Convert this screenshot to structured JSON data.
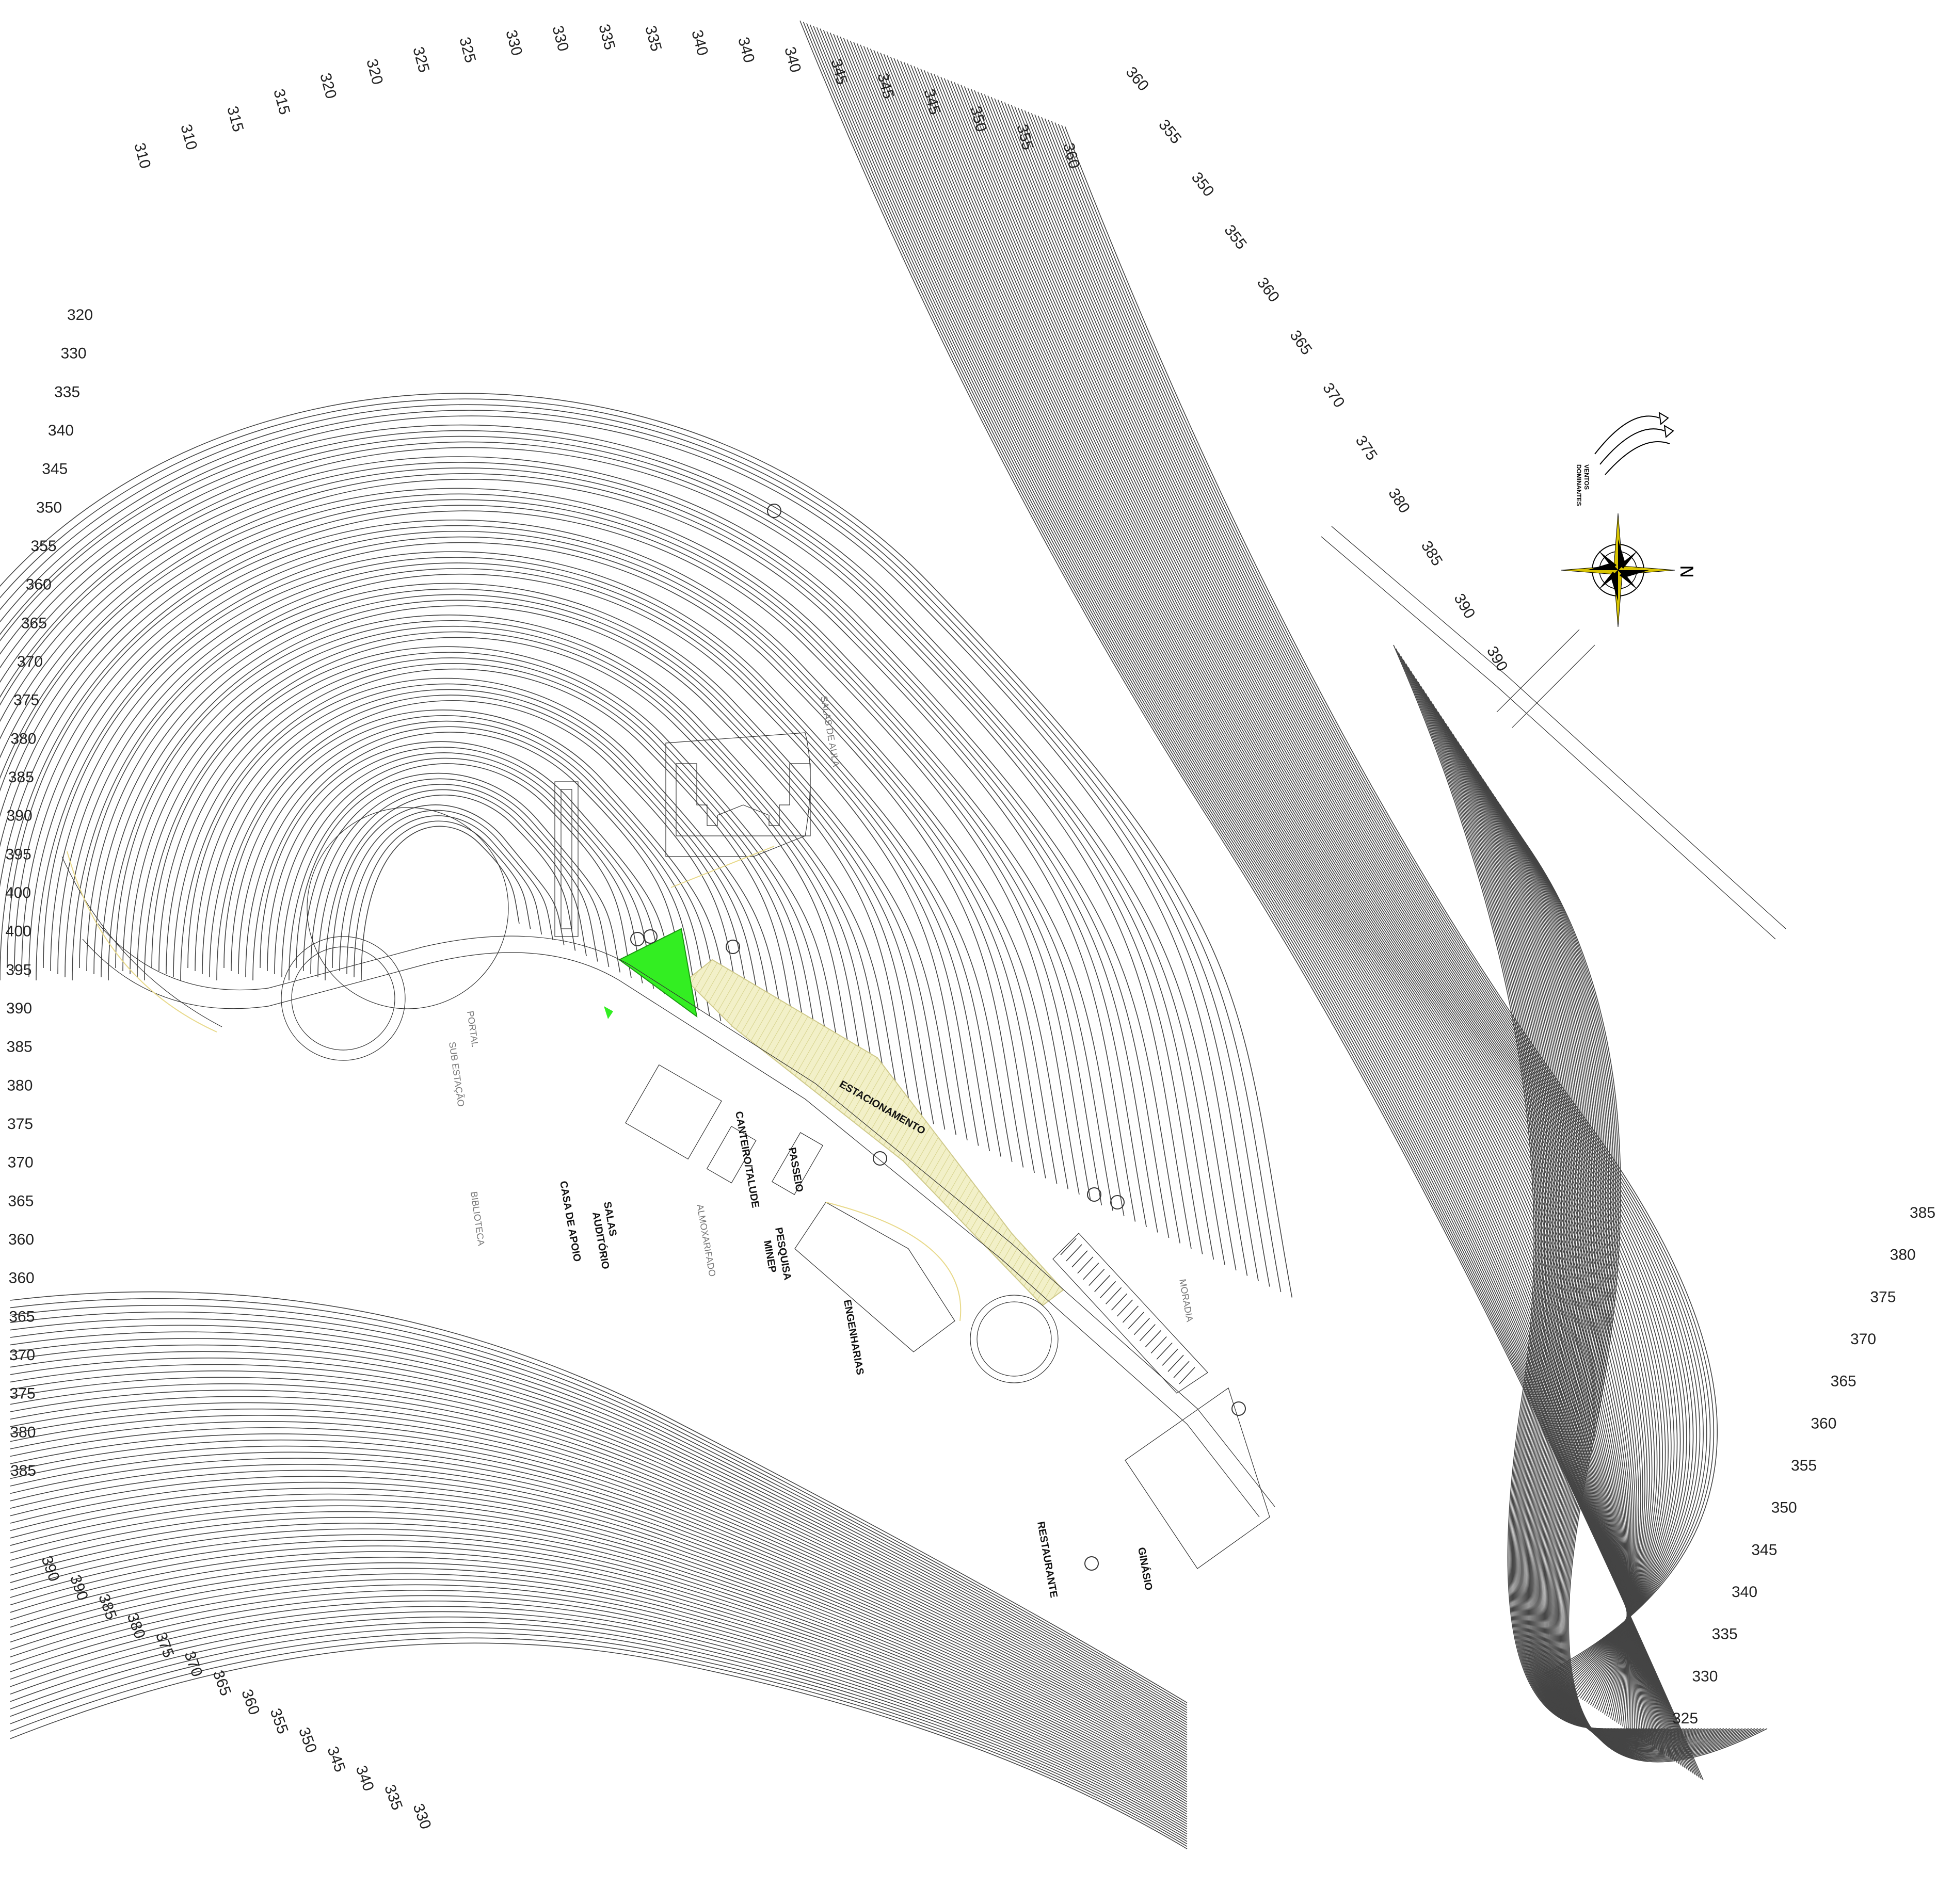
{
  "map": {
    "colors": {
      "contour": "#444444",
      "building": "#333333",
      "green_area": "#33ee22",
      "parking_hatch": "#e9e6a8",
      "circulation": "#e8d98a",
      "compass_accent": "#d8c400"
    },
    "north_label": "N",
    "wind_label_line1": "VENTOS",
    "wind_label_line2": "DOMINANTES",
    "buildings": [
      {
        "id": "salas-de-aula",
        "label": "SALAS DE AULA"
      },
      {
        "id": "portal",
        "label": "PORTAL"
      },
      {
        "id": "sub-estacao",
        "label": "SUB ESTAÇÃO"
      },
      {
        "id": "biblioteca",
        "label": "BIBLIOTECA"
      },
      {
        "id": "casa-de-apoio",
        "label": "CASA DE APOIO"
      },
      {
        "id": "salas-auditorio-1",
        "label": "SALAS"
      },
      {
        "id": "salas-auditorio-2",
        "label": "AUDITÓRIO"
      },
      {
        "id": "almoxarifado",
        "label": "ALMOXARIFADO"
      },
      {
        "id": "cantero-talude",
        "label": "CANTEIRO/TALUDE"
      },
      {
        "id": "passeio",
        "label": "PASSEIO"
      },
      {
        "id": "pesquisa-1",
        "label": "PESQUISA"
      },
      {
        "id": "pesquisa-2",
        "label": "MINEP"
      },
      {
        "id": "estacionamento",
        "label": "ESTACIONAMENTO"
      },
      {
        "id": "engenharias",
        "label": "ENGENHARIAS"
      },
      {
        "id": "moradia",
        "label": "MORADIA"
      },
      {
        "id": "restaurante",
        "label": "RESTAURANTE"
      },
      {
        "id": "ginasio",
        "label": "GINÁSIO"
      }
    ],
    "elevation_labels": {
      "top": [
        "310",
        "310",
        "315",
        "315",
        "320",
        "320",
        "325",
        "325",
        "330",
        "330",
        "335",
        "335",
        "340",
        "340",
        "340",
        "345",
        "345",
        "345",
        "350",
        "355",
        "360"
      ],
      "top_right": [
        "360",
        "355",
        "350",
        "355",
        "360",
        "365",
        "370",
        "375",
        "380",
        "385",
        "390",
        "390"
      ],
      "left": [
        "320",
        "330",
        "335",
        "340",
        "345",
        "350",
        "355",
        "360",
        "365",
        "370",
        "375",
        "380",
        "385",
        "390",
        "395",
        "400",
        "400",
        "395",
        "390",
        "385",
        "380",
        "375",
        "370",
        "365",
        "360",
        "360",
        "365",
        "370",
        "375",
        "380",
        "385"
      ],
      "bottom": [
        "390",
        "390",
        "385",
        "380",
        "375",
        "370",
        "365",
        "360",
        "355",
        "350",
        "345",
        "340",
        "335",
        "330"
      ],
      "right": [
        "385",
        "380",
        "375",
        "370",
        "365",
        "360",
        "355",
        "350",
        "345",
        "340",
        "335",
        "330",
        "325"
      ]
    }
  }
}
